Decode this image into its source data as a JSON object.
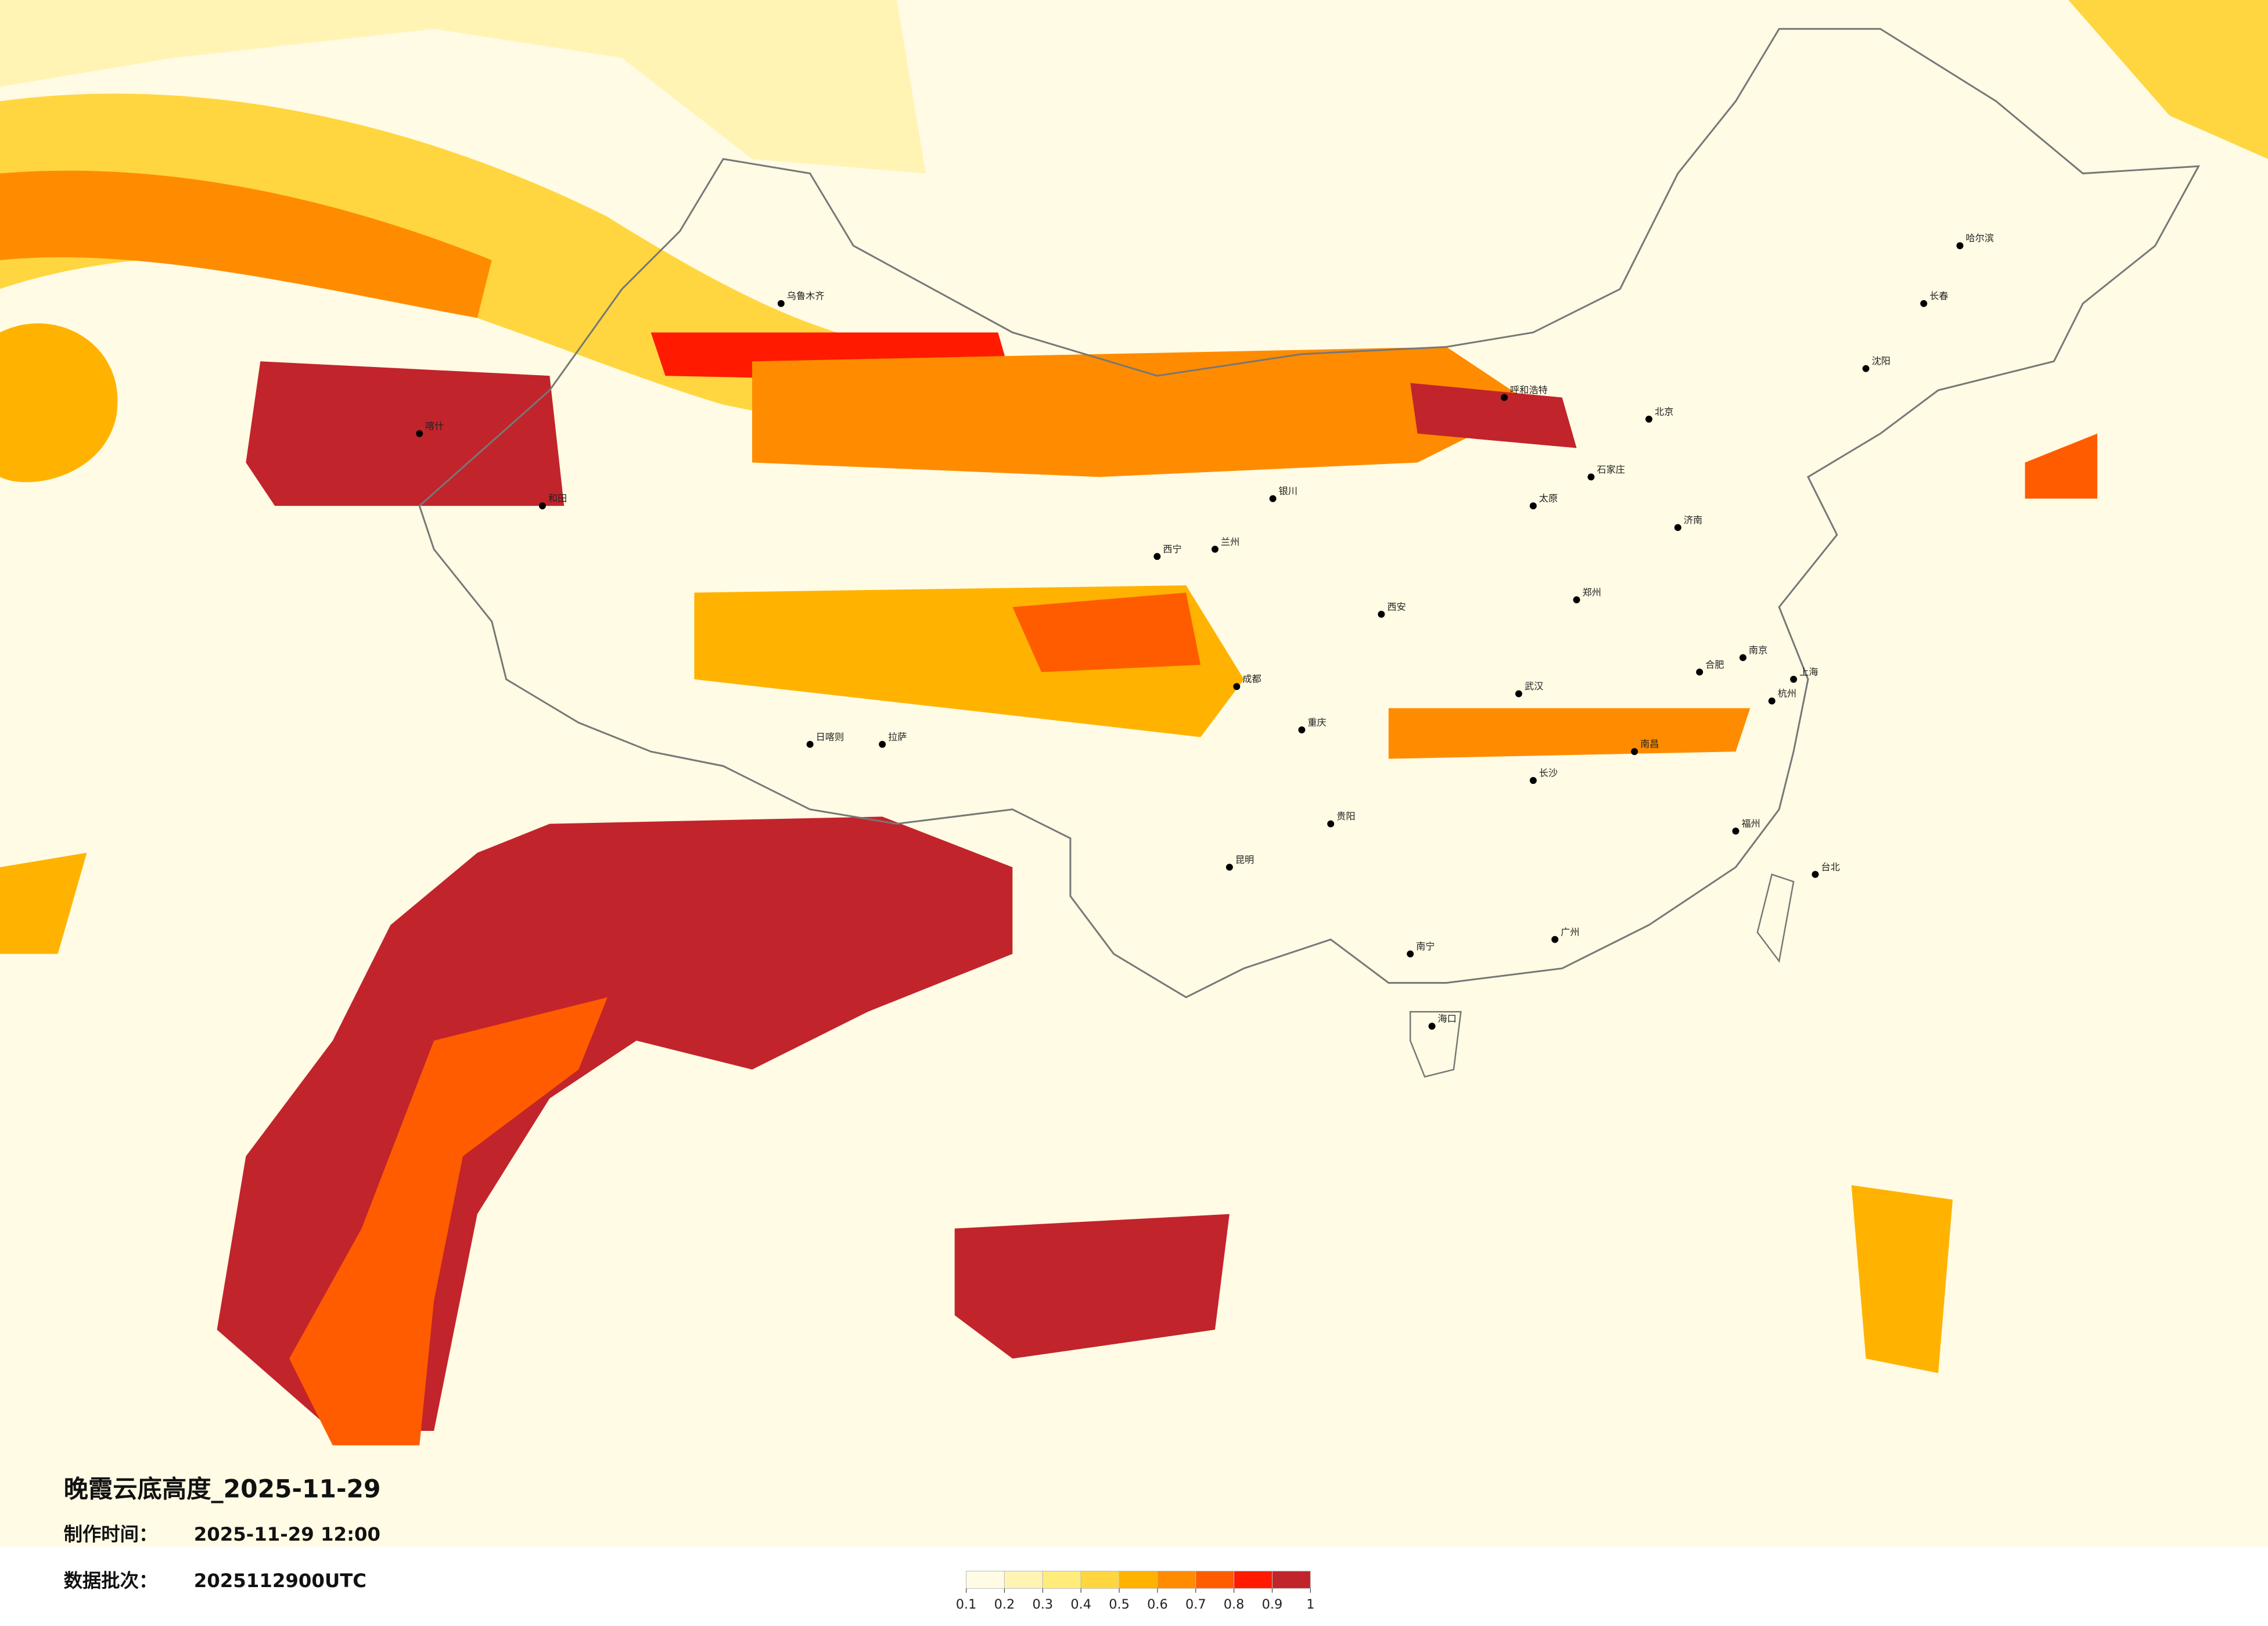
{
  "header": {
    "title": "晚霞云底高度_2025-11-29",
    "made_label": "制作时间：",
    "made_time": "2025-11-29 12:00",
    "batch_label": "数据批次：",
    "batch": "2025112900UTC"
  },
  "cities": [
    "北京",
    "上海",
    "广州",
    "重庆",
    "成都",
    "武汉",
    "西安",
    "拉萨",
    "乌鲁木齐",
    "哈尔滨",
    "昆明",
    "南宁",
    "海口",
    "台北",
    "兰州",
    "长春",
    "沈阳",
    "郑州",
    "南京",
    "杭州",
    "长沙",
    "福州",
    "贵阳",
    "银川",
    "西宁",
    "呼和浩特",
    "太原",
    "济南",
    "石家庄",
    "合肥",
    "南昌",
    "喀什",
    "和田",
    "日喀则"
  ],
  "colorbar": {
    "ticks": [
      0.1,
      0.2,
      0.3,
      0.4,
      0.5,
      0.6,
      0.7,
      0.8,
      0.9,
      1
    ],
    "colors": [
      "#fffbe4",
      "#fff4b4",
      "#ffec7a",
      "#ffd640",
      "#ffb300",
      "#ff8c00",
      "#ff5c00",
      "#ff1a00",
      "#c2242c"
    ]
  }
}
